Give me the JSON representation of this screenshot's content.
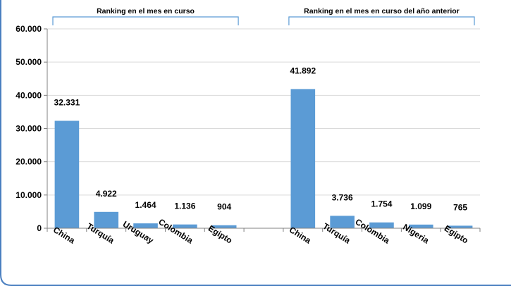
{
  "chart_data": {
    "type": "bar",
    "title": "",
    "xlabel": "",
    "ylabel": "",
    "ylim": [
      0,
      60000
    ],
    "yticks": [
      "0",
      "10.000",
      "20.000",
      "30.000",
      "40.000",
      "50.000",
      "60.000"
    ],
    "grid": true,
    "bar_color": "#5b9bd5",
    "groups": [
      {
        "label": "Ranking en el mes en curso",
        "categories": [
          "China",
          "Turquía",
          "Uruguay",
          "Colombia",
          "Egipto"
        ],
        "values": [
          32331,
          4922,
          1464,
          1136,
          904
        ],
        "value_labels": [
          "32.331",
          "4.922",
          "1.464",
          "1.136",
          "904"
        ]
      },
      {
        "label": "Ranking en el mes en curso del año anterior",
        "categories": [
          "China",
          "Turquía",
          "Colombia",
          "Nigeria",
          "Egipto"
        ],
        "values": [
          41892,
          3736,
          1754,
          1099,
          765
        ],
        "value_labels": [
          "41.892",
          "3.736",
          "1.754",
          "1.099",
          "765"
        ]
      }
    ]
  }
}
